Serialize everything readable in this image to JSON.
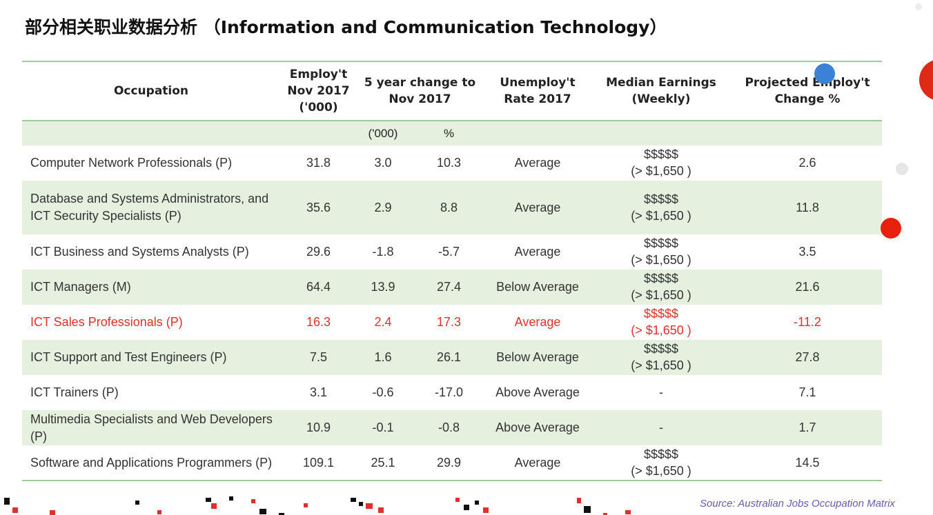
{
  "title": "部分相关职业数据分析 （Information and Communication Technology）",
  "headers": {
    "occupation": "Occupation",
    "employ": "Employ't Nov 2017 ('000)",
    "change": "5 year change to Nov 2017",
    "unemploy": "Unemploy't Rate 2017",
    "earnings": "Median Earnings (Weekly)",
    "projected": "Projected Employ't Change %",
    "sub_thousands": "('000)",
    "sub_percent": "%"
  },
  "rows": [
    {
      "occupation": "Computer Network Professionals (P)",
      "employ": "31.8",
      "change_k": "3.0",
      "change_pct": "10.3",
      "unemploy": "Average",
      "earn1": "$$$$$",
      "earn2": "(> $1,650 )",
      "projected": "2.6"
    },
    {
      "occupation": "Database and Systems Administrators, and ICT Security Specialists (P)",
      "employ": "35.6",
      "change_k": "2.9",
      "change_pct": "8.8",
      "unemploy": "Average",
      "earn1": "$$$$$",
      "earn2": "(> $1,650 )",
      "projected": "11.8"
    },
    {
      "occupation": "ICT Business and Systems Analysts (P)",
      "employ": "29.6",
      "change_k": "-1.8",
      "change_pct": "-5.7",
      "unemploy": "Average",
      "earn1": "$$$$$",
      "earn2": "(> $1,650 )",
      "projected": "3.5"
    },
    {
      "occupation": "ICT Managers (M)",
      "employ": "64.4",
      "change_k": "13.9",
      "change_pct": "27.4",
      "unemploy": "Below Average",
      "earn1": "$$$$$",
      "earn2": "(> $1,650 )",
      "projected": "21.6"
    },
    {
      "occupation": "ICT Sales Professionals (P)",
      "employ": "16.3",
      "change_k": "2.4",
      "change_pct": "17.3",
      "unemploy": "Average",
      "earn1": "$$$$$",
      "earn2": "(> $1,650 )",
      "projected": "-11.2"
    },
    {
      "occupation": "ICT Support and Test Engineers (P)",
      "employ": "7.5",
      "change_k": "1.6",
      "change_pct": "26.1",
      "unemploy": "Below Average",
      "earn1": "$$$$$",
      "earn2": "(> $1,650 )",
      "projected": "27.8"
    },
    {
      "occupation": "ICT Trainers (P)",
      "employ": "3.1",
      "change_k": "-0.6",
      "change_pct": "-17.0",
      "unemploy": "Above Average",
      "earn1": "-",
      "earn2": "",
      "projected": "7.1"
    },
    {
      "occupation": "Multimedia Specialists and Web Developers (P)",
      "employ": "10.9",
      "change_k": "-0.1",
      "change_pct": "-0.8",
      "unemploy": "Above Average",
      "earn1": "-",
      "earn2": "",
      "projected": "1.7"
    },
    {
      "occupation": "Software and Applications Programmers (P)",
      "employ": "109.1",
      "change_k": "25.1",
      "change_pct": "29.9",
      "unemploy": "Average",
      "earn1": "$$$$$",
      "earn2": "(> $1,650 )",
      "projected": "14.5"
    }
  ],
  "source": "Source: Australian Jobs Occupation Matrix",
  "colors": {
    "highlight": "#e0302a",
    "band": "#e5f0df",
    "rule": "#9ccb94",
    "source": "#6a5aa8"
  }
}
